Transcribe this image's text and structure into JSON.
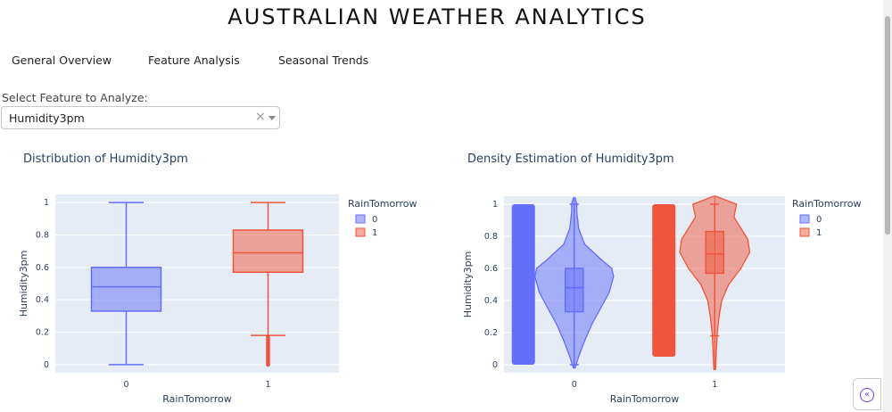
{
  "app": {
    "title": "AUSTRALIAN WEATHER ANALYTICS"
  },
  "tabs": [
    {
      "label": "General Overview"
    },
    {
      "label": "Feature Analysis"
    },
    {
      "label": "Seasonal Trends"
    }
  ],
  "feature_select": {
    "label": "Select Feature to Analyze:",
    "value": "Humidity3pm",
    "clear_icon": "×",
    "arrow_icon": "chevron-down-icon"
  },
  "sidebar_toggle": {
    "icon": "double-chevron-left-icon",
    "glyph": "«"
  },
  "colors": {
    "class0": "#636efa",
    "class1": "#ef553b",
    "plot_bg": "#e5ecf6"
  },
  "chart_data": [
    {
      "type": "box",
      "title": "Distribution of Humidity3pm",
      "xlabel": "RainTomorrow",
      "ylabel": "Humidity3pm",
      "ylim": [
        -0.05,
        1.05
      ],
      "yticks": [
        0,
        0.2,
        0.4,
        0.6,
        0.8,
        1
      ],
      "ytick_labels": [
        "0",
        "0.2",
        "0.4",
        "0.6",
        "0.8",
        "1"
      ],
      "categories": [
        "0",
        "1"
      ],
      "legend": {
        "title": "RainTomorrow",
        "entries": [
          "0",
          "1"
        ],
        "position": "top-right"
      },
      "series": [
        {
          "name": "0",
          "min": 0.0,
          "q1": 0.33,
          "median": 0.48,
          "q3": 0.6,
          "max": 1.0,
          "outliers": []
        },
        {
          "name": "1",
          "min": 0.18,
          "q1": 0.57,
          "median": 0.69,
          "q3": 0.83,
          "max": 1.0,
          "outliers": [
            0.0,
            0.01,
            0.02,
            0.03,
            0.04,
            0.05,
            0.06,
            0.07,
            0.08,
            0.09,
            0.1,
            0.11,
            0.12,
            0.13,
            0.14,
            0.15,
            0.16,
            0.17
          ]
        }
      ]
    },
    {
      "type": "violin",
      "title": "Density Estimation of Humidity3pm",
      "xlabel": "RainTomorrow",
      "ylabel": "Humidity3pm",
      "ylim": [
        -0.05,
        1.05
      ],
      "yticks": [
        0,
        0.2,
        0.4,
        0.6,
        0.8,
        1
      ],
      "ytick_labels": [
        "0",
        "0.2",
        "0.4",
        "0.6",
        "0.8",
        "1"
      ],
      "categories": [
        "0",
        "1"
      ],
      "legend": {
        "title": "RainTomorrow",
        "entries": [
          "0",
          "1"
        ],
        "position": "top-right"
      },
      "series": [
        {
          "name": "0",
          "min": 0.0,
          "q1": 0.33,
          "median": 0.48,
          "q3": 0.6,
          "max": 1.0,
          "violin_min": -0.02,
          "violin_max": 1.04,
          "points_min": 0.0,
          "points_max": 1.0,
          "density": [
            [
              -0.02,
              0.01
            ],
            [
              0.05,
              0.05
            ],
            [
              0.15,
              0.12
            ],
            [
              0.25,
              0.2
            ],
            [
              0.35,
              0.3
            ],
            [
              0.45,
              0.4
            ],
            [
              0.55,
              0.45
            ],
            [
              0.6,
              0.43
            ],
            [
              0.65,
              0.32
            ],
            [
              0.75,
              0.12
            ],
            [
              0.85,
              0.05
            ],
            [
              0.95,
              0.03
            ],
            [
              1.0,
              0.03
            ],
            [
              1.04,
              0.01
            ]
          ]
        },
        {
          "name": "1",
          "min": 0.18,
          "q1": 0.57,
          "median": 0.69,
          "q3": 0.83,
          "max": 1.0,
          "violin_min": -0.03,
          "violin_max": 1.05,
          "points_min": 0.05,
          "points_max": 1.0,
          "density": [
            [
              -0.03,
              0.01
            ],
            [
              0.1,
              0.02
            ],
            [
              0.2,
              0.03
            ],
            [
              0.3,
              0.05
            ],
            [
              0.4,
              0.08
            ],
            [
              0.5,
              0.16
            ],
            [
              0.6,
              0.3
            ],
            [
              0.7,
              0.4
            ],
            [
              0.78,
              0.38
            ],
            [
              0.85,
              0.3
            ],
            [
              0.92,
              0.22
            ],
            [
              1.0,
              0.25
            ],
            [
              1.05,
              0.01
            ]
          ]
        }
      ]
    }
  ]
}
